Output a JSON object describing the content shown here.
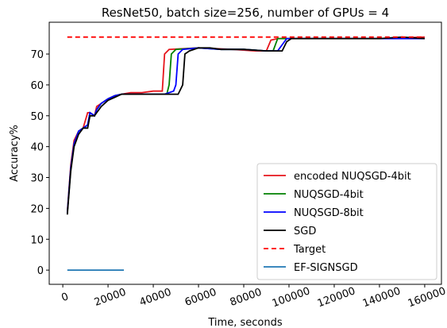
{
  "chart_data": {
    "type": "line",
    "title": "ResNet50, batch size=256, number of GPUs = 4",
    "xlabel": "Time, seconds",
    "ylabel": "Accuracy%",
    "xlim": [
      -6000,
      167400
    ],
    "ylim": [
      -4.6,
      80.3
    ],
    "xticks": [
      0,
      20000,
      40000,
      60000,
      80000,
      100000,
      120000,
      140000,
      160000
    ],
    "yticks": [
      0,
      10,
      20,
      30,
      40,
      50,
      60,
      70
    ],
    "legend": "lower right",
    "series": [
      {
        "name": "encoded NUQSGD-4bit",
        "color": "#e6141b",
        "linestyle": "solid",
        "x": [
          2000,
          3500,
          5000,
          7000,
          9000,
          11000,
          12000,
          14000,
          15000,
          17000,
          20000,
          23000,
          26000,
          30000,
          35000,
          40000,
          44000,
          45000,
          47000,
          60000,
          75000,
          85000,
          90000,
          92000,
          95000,
          110000,
          140000,
          160000
        ],
        "values": [
          19,
          34,
          42,
          45,
          46,
          51,
          51,
          50,
          53,
          54,
          55.5,
          56.5,
          57,
          57.5,
          57.5,
          58,
          58,
          70,
          71.5,
          72,
          71.5,
          71,
          71,
          74.5,
          75,
          75,
          75,
          75.5
        ]
      },
      {
        "name": "NUQSGD-4bit",
        "color": "#008000",
        "linestyle": "solid",
        "x": [
          2000,
          3500,
          5000,
          7000,
          9000,
          11000,
          12000,
          14000,
          15000,
          17000,
          20000,
          23000,
          26000,
          30000,
          35000,
          40000,
          46000,
          47000,
          48000,
          50000,
          60000,
          70000,
          80000,
          90000,
          93000,
          95000,
          110000,
          140000,
          160000
        ],
        "values": [
          18.5,
          33,
          41,
          45,
          46,
          47,
          51,
          50,
          52,
          54,
          55.5,
          56.5,
          57,
          57,
          57,
          57,
          57,
          60,
          70,
          71.5,
          72,
          71.5,
          71.5,
          71,
          71,
          75,
          75,
          75,
          75
        ]
      },
      {
        "name": "NUQSGD-8bit",
        "color": "#0000ff",
        "linestyle": "solid",
        "x": [
          2000,
          3500,
          5000,
          7000,
          9000,
          11000,
          12000,
          14000,
          15000,
          17000,
          20000,
          23000,
          26000,
          30000,
          35000,
          40000,
          45000,
          49000,
          50000,
          51000,
          53000,
          60000,
          70000,
          80000,
          90000,
          95000,
          97000,
          99000,
          110000,
          140000,
          160000
        ],
        "values": [
          18.5,
          33,
          41,
          45,
          46,
          47,
          51,
          50,
          52,
          54,
          55.5,
          56.5,
          57,
          57,
          57,
          57,
          57,
          58,
          60,
          70,
          71.5,
          72,
          71.5,
          71.5,
          71,
          71,
          73,
          75,
          75,
          75,
          75
        ]
      },
      {
        "name": "SGD",
        "color": "#000000",
        "linestyle": "solid",
        "x": [
          2000,
          3500,
          5000,
          7000,
          9000,
          11000,
          12000,
          14000,
          15000,
          17000,
          20000,
          23000,
          26000,
          30000,
          35000,
          40000,
          45000,
          49000,
          51000,
          53000,
          54000,
          56000,
          60000,
          65000,
          70000,
          80000,
          90000,
          95000,
          97000,
          99000,
          101000,
          110000,
          120000,
          140000,
          150000,
          160000
        ],
        "values": [
          18,
          32,
          40,
          44,
          46,
          46,
          50,
          50,
          51,
          53,
          55,
          56,
          57,
          57,
          57,
          57,
          57,
          57,
          57,
          60,
          70,
          71,
          72,
          72,
          71.5,
          71.5,
          71,
          71,
          71,
          74,
          75,
          75,
          75,
          75,
          75.5,
          75
        ]
      },
      {
        "name": "Target",
        "color": "#ff0000",
        "linestyle": "dashed",
        "x": [
          2000,
          160000
        ],
        "values": [
          75.5,
          75.5
        ]
      },
      {
        "name": "EF-SIGNSGD",
        "color": "#1f77b4",
        "linestyle": "solid",
        "x": [
          2000,
          27000
        ],
        "values": [
          0,
          0
        ]
      }
    ]
  }
}
